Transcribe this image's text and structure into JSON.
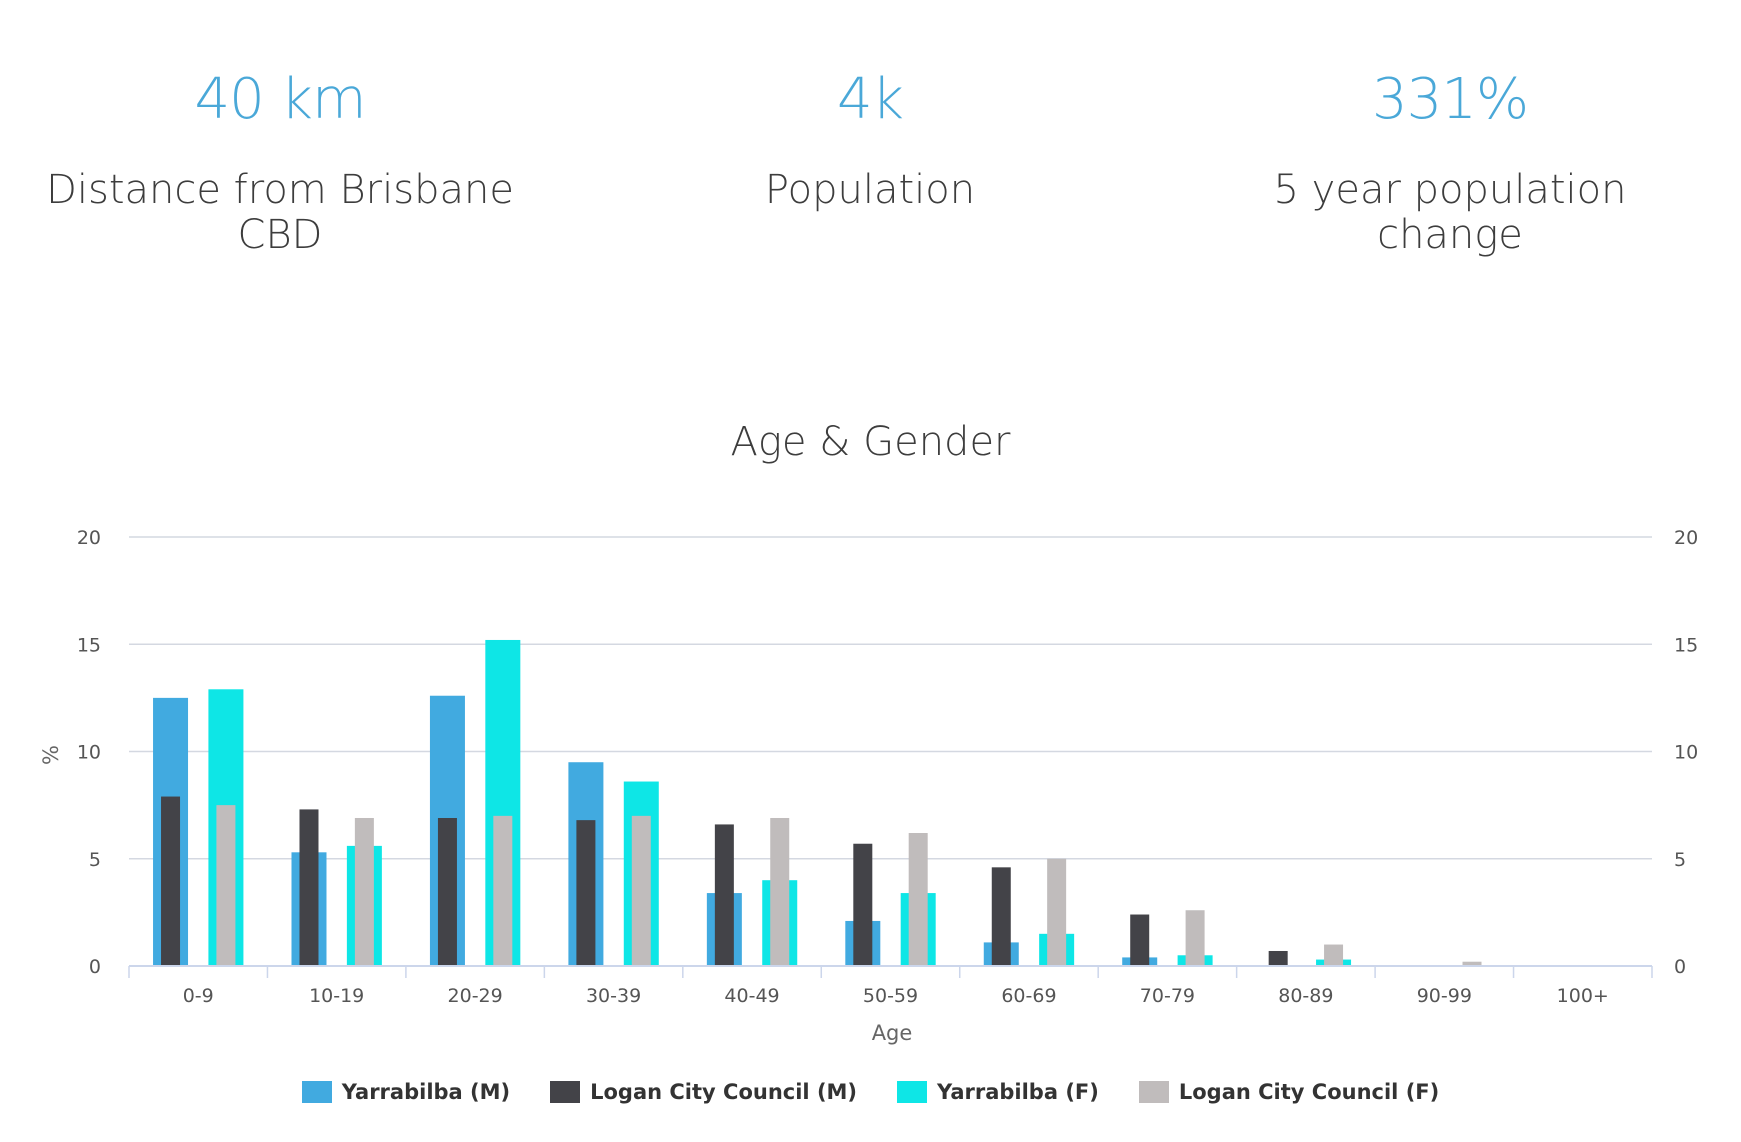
{
  "stats": [
    {
      "value": "40 km",
      "label": "Distance from Brisbane CBD"
    },
    {
      "value": "4k",
      "label": "Population"
    },
    {
      "value": "331%",
      "label": "5 year population change"
    }
  ],
  "colors": {
    "stat_value": "#4aa8d8",
    "grid": "#d4d8e1",
    "axis": "#ccd6eb",
    "yarrabilba_m": "#41aae0",
    "logan_m": "#434348",
    "yarrabilba_f": "#0ee6e6",
    "logan_f": "#c0bcbc"
  },
  "chart_data": {
    "type": "bar",
    "title": "Age & Gender",
    "xlabel": "Age",
    "ylabel": "%",
    "ylim": [
      0,
      20
    ],
    "yticks": [
      0,
      5,
      10,
      15,
      20
    ],
    "grid": true,
    "legend_position": "bottom-center",
    "categories": [
      "0-9",
      "10-19",
      "20-29",
      "30-39",
      "40-49",
      "50-59",
      "60-69",
      "70-79",
      "80-89",
      "90-99",
      "100+"
    ],
    "series": [
      {
        "name": "Yarrabilba (M)",
        "group": "M",
        "layer": "back",
        "color": "#41aae0",
        "values": [
          12.5,
          5.3,
          12.6,
          9.5,
          3.4,
          2.1,
          1.1,
          0.4,
          0,
          0,
          0
        ]
      },
      {
        "name": "Logan City Council (M)",
        "group": "M",
        "layer": "front",
        "color": "#434348",
        "values": [
          7.9,
          7.3,
          6.9,
          6.8,
          6.6,
          5.7,
          4.6,
          2.4,
          0.7,
          0,
          0
        ]
      },
      {
        "name": "Yarrabilba (F)",
        "group": "F",
        "layer": "back",
        "color": "#0ee6e6",
        "values": [
          12.9,
          5.6,
          15.2,
          8.6,
          4.0,
          3.4,
          1.5,
          0.5,
          0.3,
          0,
          0
        ]
      },
      {
        "name": "Logan City Council (F)",
        "group": "F",
        "layer": "front",
        "color": "#c0bcbc",
        "values": [
          7.5,
          6.9,
          7.0,
          7.0,
          6.9,
          6.2,
          5.0,
          2.6,
          1.0,
          0.2,
          0
        ]
      }
    ]
  }
}
